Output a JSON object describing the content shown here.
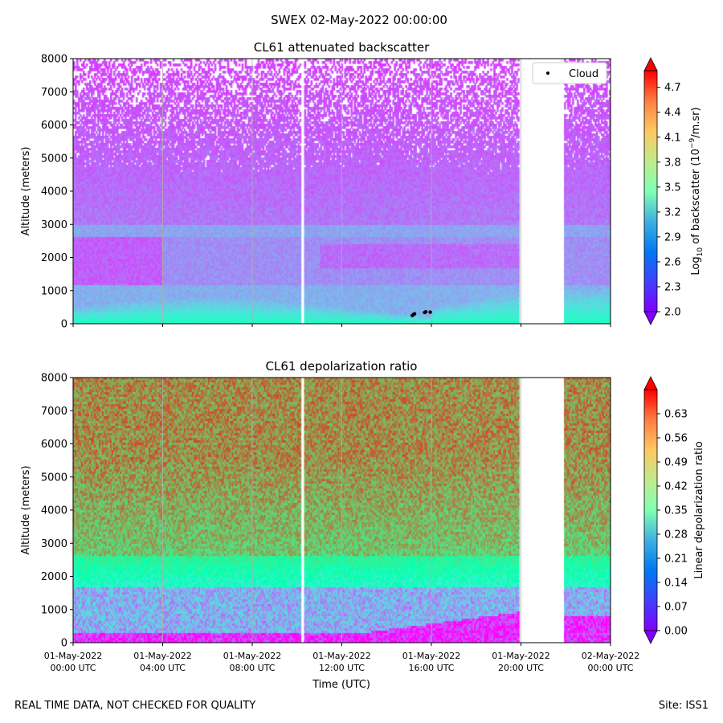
{
  "figure": {
    "suptitle": "SWEX 02-May-2022 00:00:00",
    "footer_left": "REAL TIME DATA, NOT CHECKED FOR QUALITY",
    "footer_right": "Site: ISS1"
  },
  "chart_data": [
    {
      "type": "heatmap",
      "title": "CL61 attenuated backscatter",
      "ylabel": "Altitude (meters)",
      "xlabel": "",
      "xlim_hours": [
        0,
        24
      ],
      "ylim": [
        0,
        8000
      ],
      "yticks": [
        0,
        1000,
        2000,
        3000,
        4000,
        5000,
        6000,
        7000,
        8000
      ],
      "xticks_hours": [
        0,
        4,
        8,
        12,
        16,
        20,
        24
      ],
      "grid_x": true,
      "data_gaps_hours": [
        [
          10.15,
          10.3
        ],
        [
          19.9,
          21.9
        ]
      ],
      "colorbar": {
        "label": "Log10 of backscatter (10^-9/m.sr)",
        "label_base": "Log",
        "label_sub": "10",
        "label_mid": " of backscatter (10",
        "label_sup": "−9",
        "label_end": "/m.sr)",
        "range": [
          2.0,
          4.9
        ],
        "ticks": [
          "2.0",
          "2.3",
          "2.6",
          "2.9",
          "3.2",
          "3.5",
          "3.8",
          "4.1",
          "4.4",
          "4.7"
        ],
        "extend": "both",
        "colormap": "rainbow"
      },
      "legend": {
        "entries": [
          "Cloud"
        ],
        "position": "upper right"
      },
      "cloud_points": [
        {
          "time_h": 15.15,
          "alt_m": 250
        },
        {
          "time_h": 15.2,
          "alt_m": 280
        },
        {
          "time_h": 15.25,
          "alt_m": 300
        },
        {
          "time_h": 15.7,
          "alt_m": 340
        },
        {
          "time_h": 15.75,
          "alt_m": 360
        },
        {
          "time_h": 15.95,
          "alt_m": 350
        }
      ]
    },
    {
      "type": "heatmap",
      "title": "CL61 depolarization ratio",
      "ylabel": "Altitude (meters)",
      "xlabel": "Time (UTC)",
      "xlim_hours": [
        0,
        24
      ],
      "ylim": [
        0,
        8000
      ],
      "yticks": [
        0,
        1000,
        2000,
        3000,
        4000,
        5000,
        6000,
        7000,
        8000
      ],
      "xticks_hours": [
        0,
        4,
        8,
        12,
        16,
        20,
        24
      ],
      "xtick_labels": [
        [
          "01-May-2022",
          "00:00 UTC"
        ],
        [
          "01-May-2022",
          "04:00 UTC"
        ],
        [
          "01-May-2022",
          "08:00 UTC"
        ],
        [
          "01-May-2022",
          "12:00 UTC"
        ],
        [
          "01-May-2022",
          "16:00 UTC"
        ],
        [
          "01-May-2022",
          "20:00 UTC"
        ],
        [
          "02-May-2022",
          "00:00 UTC"
        ]
      ],
      "grid_x": true,
      "data_gaps_hours": [
        [
          10.15,
          10.3
        ],
        [
          19.9,
          21.9
        ]
      ],
      "colorbar": {
        "label": "Linear depolarization ratio",
        "range": [
          0.0,
          0.7
        ],
        "ticks": [
          "0.00",
          "0.07",
          "0.14",
          "0.21",
          "0.28",
          "0.35",
          "0.42",
          "0.49",
          "0.56",
          "0.63"
        ],
        "extend": "both",
        "colormap": "rainbow"
      }
    }
  ]
}
